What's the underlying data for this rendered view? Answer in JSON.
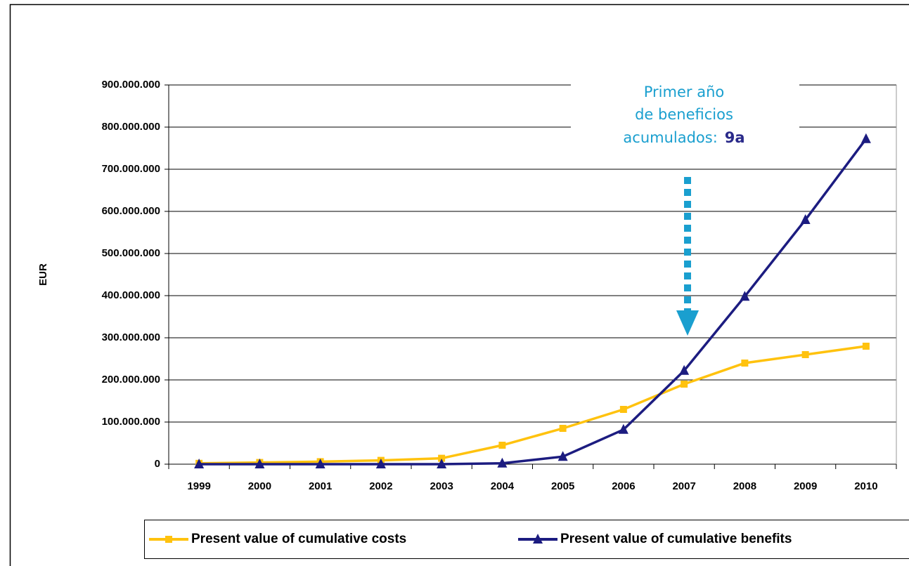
{
  "chart_data": {
    "type": "line",
    "ylabel": "EUR",
    "categories": [
      "1999",
      "2000",
      "2001",
      "2002",
      "2003",
      "2004",
      "2005",
      "2006",
      "2007",
      "2008",
      "2009",
      "2010"
    ],
    "series": [
      {
        "name": "Present value of cumulative costs",
        "color": "#ffc20e",
        "marker": "square",
        "values": [
          2000000,
          4000000,
          6000000,
          9000000,
          14000000,
          45000000,
          85000000,
          130000000,
          190000000,
          240000000,
          260000000,
          280000000
        ]
      },
      {
        "name": "Present value of cumulative benefits",
        "color": "#1c1c80",
        "marker": "triangle",
        "values": [
          0,
          0,
          0,
          0,
          0,
          2000000,
          18000000,
          82000000,
          222000000,
          398000000,
          580000000,
          772000000
        ]
      }
    ],
    "ylim": [
      0,
      900000000
    ],
    "yticks": [
      0,
      {
        "value": 100000000,
        "label": "100.000.000"
      },
      {
        "value": 200000000,
        "label": "200.000.000"
      },
      {
        "value": 300000000,
        "label": "300.000.000"
      },
      {
        "value": 400000000,
        "label": "400.000.000"
      },
      {
        "value": 500000000,
        "label": "500.000.000"
      },
      {
        "value": 600000000,
        "label": "600.000.000"
      },
      {
        "value": 700000000,
        "label": "700.000.000"
      },
      {
        "value": 800000000,
        "label": "800.000.000"
      },
      {
        "value": 900000000,
        "label": "900.000.000"
      }
    ],
    "grid": true,
    "legend": "bottom",
    "annotation": {
      "lines": [
        "Primer año",
        "de beneficios",
        "acumulados:"
      ],
      "highlight": "9a"
    }
  }
}
